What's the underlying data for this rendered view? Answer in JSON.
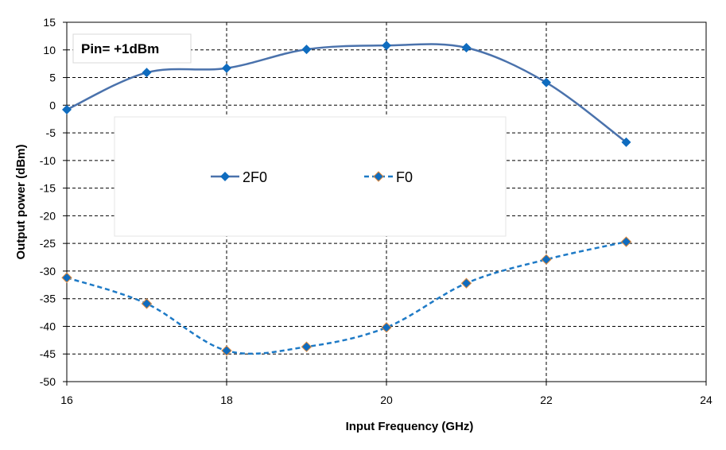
{
  "chart_data": {
    "type": "line",
    "xlabel": "Input Frequency (GHz)",
    "ylabel": "Output power (dBm)",
    "xlim": [
      16,
      24
    ],
    "ylim": [
      -50,
      15
    ],
    "xticks": [
      16,
      18,
      20,
      22,
      24
    ],
    "yticks": [
      15,
      10,
      5,
      0,
      -5,
      -10,
      -15,
      -20,
      -25,
      -30,
      -35,
      -40,
      -45,
      -50
    ],
    "grid": true,
    "annotation": "Pin= +1dBm",
    "legend_position": "center-left, inside plot",
    "x": [
      16,
      17,
      18,
      19,
      20,
      21,
      22,
      23
    ],
    "series": [
      {
        "name": "2F0",
        "values": [
          -0.8,
          5.9,
          6.7,
          10.1,
          10.8,
          10.4,
          4.1,
          -6.7
        ],
        "color": "#4A72AC",
        "marker_color": "#0F6CBF",
        "dash": false
      },
      {
        "name": "F0",
        "values": [
          -31.2,
          -35.9,
          -44.4,
          -43.7,
          -40.2,
          -32.2,
          -27.9,
          -24.7
        ],
        "color": "#1E7AC6",
        "marker_color": "#0F6CBF",
        "marker_edge": "#E08A3C",
        "dash": true
      }
    ]
  }
}
